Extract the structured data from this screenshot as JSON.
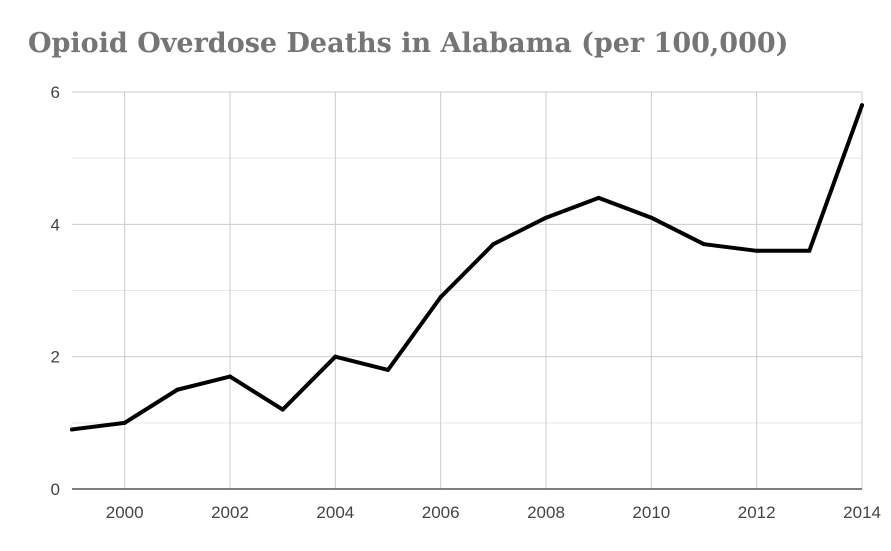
{
  "chart_data": {
    "type": "line",
    "title": "Opioid Overdose Deaths in Alabama (per 100,000)",
    "xlabel": "",
    "ylabel": "",
    "x": [
      1999,
      2000,
      2001,
      2002,
      2003,
      2004,
      2005,
      2006,
      2007,
      2008,
      2009,
      2010,
      2011,
      2012,
      2013,
      2014
    ],
    "series": [
      {
        "values": [
          0.9,
          1.0,
          1.5,
          1.7,
          1.2,
          2.0,
          1.8,
          2.9,
          3.7,
          4.1,
          4.4,
          4.1,
          3.7,
          3.6,
          3.6,
          5.8
        ],
        "color": "#000000"
      }
    ],
    "xlim": [
      1999,
      2014
    ],
    "ylim": [
      0,
      6
    ],
    "x_ticks": [
      "2000",
      "2002",
      "2004",
      "2006",
      "2008",
      "2010",
      "2012",
      "2014"
    ],
    "y_ticks": [
      "0",
      "2",
      "4",
      "6"
    ],
    "grid": true,
    "legend": "none"
  },
  "colors": {
    "title": "#757575",
    "gridline_major": "#cccccc",
    "gridline_minor": "#e8e8e8",
    "axis_line": "#333333",
    "line": "#000000"
  }
}
